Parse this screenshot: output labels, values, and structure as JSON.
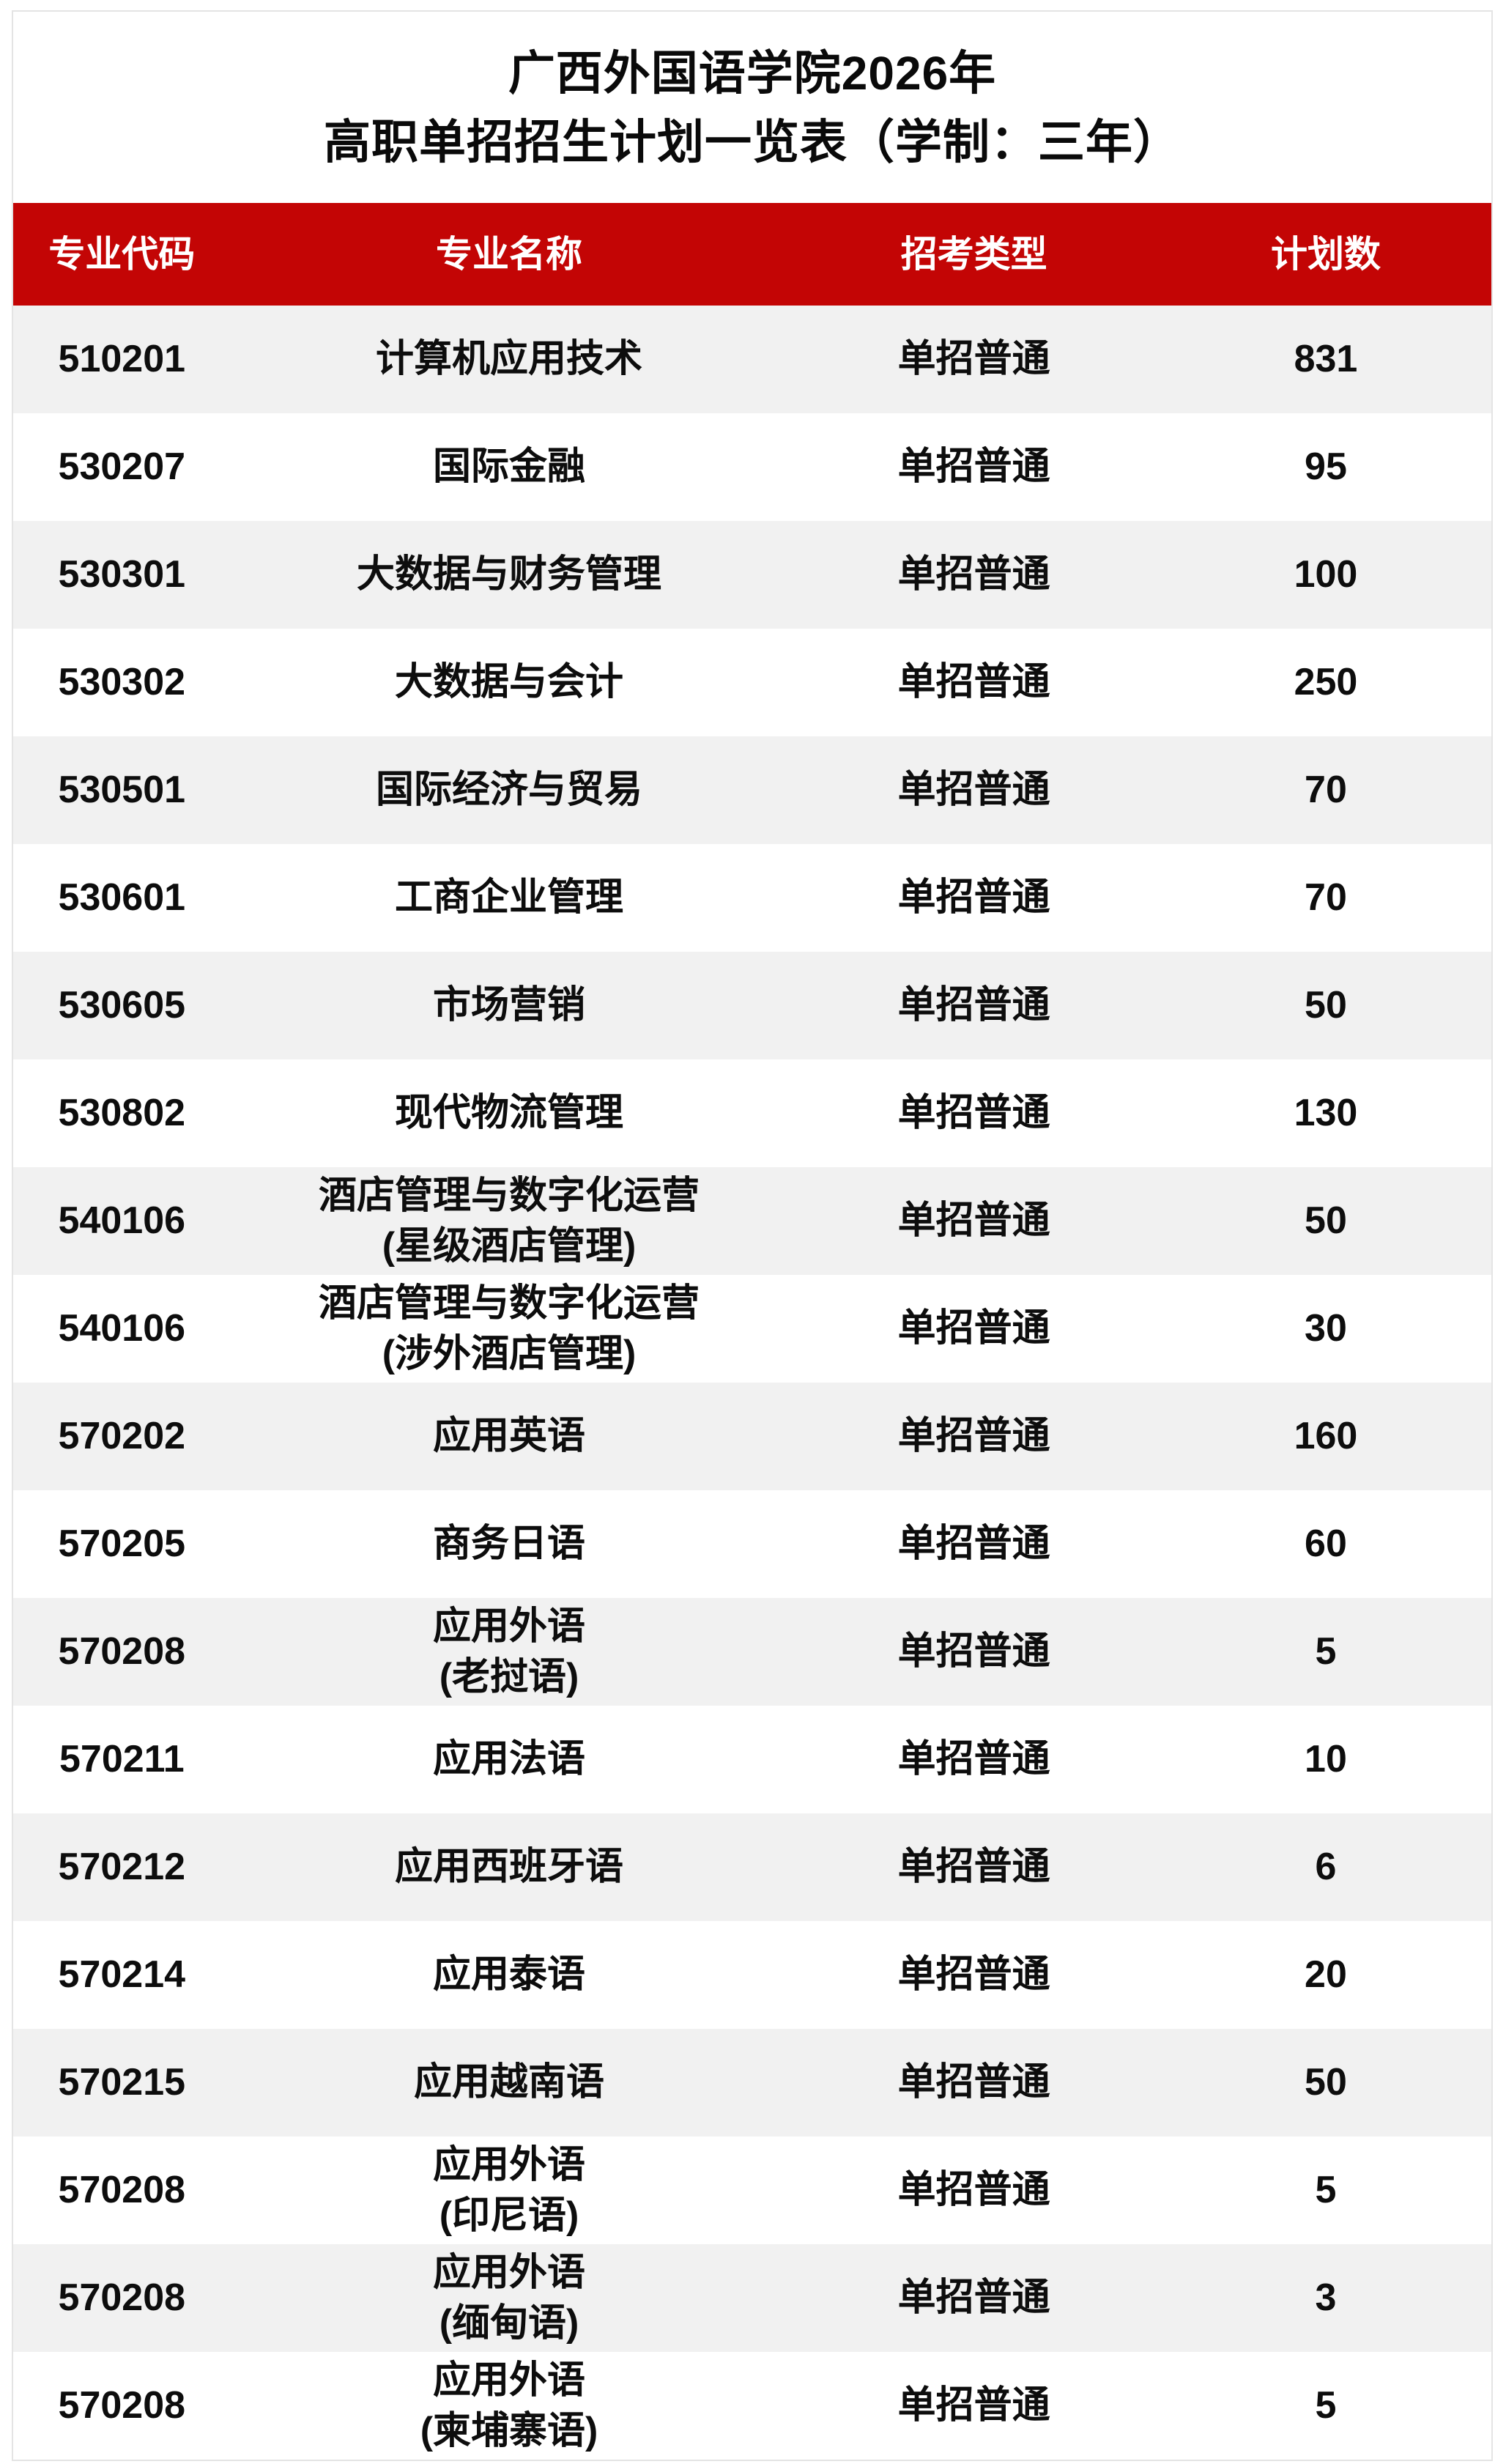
{
  "title": {
    "line1": "广西外国语学院2026年",
    "line2": "高职单招招生计划一览表（学制：三年）"
  },
  "table": {
    "headers": [
      "专业代码",
      "专业名称",
      "招考类型",
      "计划数"
    ],
    "rows": [
      {
        "code": "510201",
        "major": "计算机应用技术",
        "type": "单招普通",
        "plan": "831"
      },
      {
        "code": "530207",
        "major": "国际金融",
        "type": "单招普通",
        "plan": "95"
      },
      {
        "code": "530301",
        "major": "大数据与财务管理",
        "type": "单招普通",
        "plan": "100"
      },
      {
        "code": "530302",
        "major": "大数据与会计",
        "type": "单招普通",
        "plan": "250"
      },
      {
        "code": "530501",
        "major": "国际经济与贸易",
        "type": "单招普通",
        "plan": "70"
      },
      {
        "code": "530601",
        "major": "工商企业管理",
        "type": "单招普通",
        "plan": "70"
      },
      {
        "code": "530605",
        "major": "市场营销",
        "type": "单招普通",
        "plan": "50"
      },
      {
        "code": "530802",
        "major": "现代物流管理",
        "type": "单招普通",
        "plan": "130"
      },
      {
        "code": "540106",
        "major": "酒店管理与数字化运营\n(星级酒店管理)",
        "type": "单招普通",
        "plan": "50"
      },
      {
        "code": "540106",
        "major": "酒店管理与数字化运营\n(涉外酒店管理)",
        "type": "单招普通",
        "plan": "30"
      },
      {
        "code": "570202",
        "major": "应用英语",
        "type": "单招普通",
        "plan": "160"
      },
      {
        "code": "570205",
        "major": "商务日语",
        "type": "单招普通",
        "plan": "60"
      },
      {
        "code": "570208",
        "major": "应用外语\n(老挝语)",
        "type": "单招普通",
        "plan": "5"
      },
      {
        "code": "570211",
        "major": "应用法语",
        "type": "单招普通",
        "plan": "10"
      },
      {
        "code": "570212",
        "major": "应用西班牙语",
        "type": "单招普通",
        "plan": "6"
      },
      {
        "code": "570214",
        "major": "应用泰语",
        "type": "单招普通",
        "plan": "20"
      },
      {
        "code": "570215",
        "major": "应用越南语",
        "type": "单招普通",
        "plan": "50"
      },
      {
        "code": "570208",
        "major": "应用外语\n(印尼语)",
        "type": "单招普通",
        "plan": "5"
      },
      {
        "code": "570208",
        "major": "应用外语\n(缅甸语)",
        "type": "单招普通",
        "plan": "3"
      },
      {
        "code": "570208",
        "major": "应用外语\n(柬埔寨语)",
        "type": "单招普通",
        "plan": "5"
      }
    ]
  },
  "colors": {
    "header_bg": "#c30505",
    "header_text": "#ffffff",
    "row_alt_bg": "#f1f1f1",
    "body_text": "#0d0d0d",
    "card_border": "#e4e4e4"
  }
}
